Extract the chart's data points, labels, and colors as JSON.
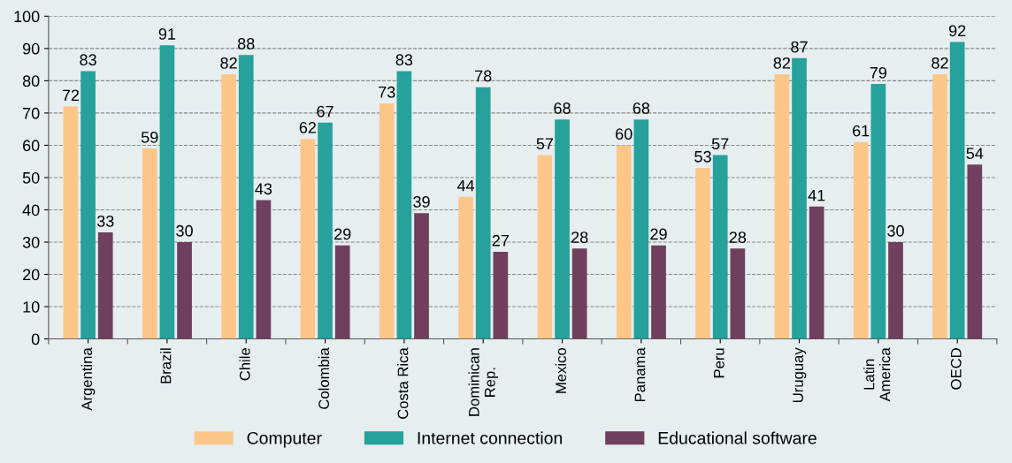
{
  "chart_data": {
    "type": "bar",
    "categories": [
      "Argentina",
      "Brazil",
      "Chile",
      "Colombia",
      "Costa Rica",
      "Dominican\nRep.",
      "Mexico",
      "Panama",
      "Peru",
      "Uruguay",
      "Latin\nAmerica",
      "OECD"
    ],
    "series": [
      {
        "name": "Computer",
        "color": "#fdc689",
        "values": [
          72,
          59,
          82,
          62,
          73,
          44,
          57,
          60,
          53,
          82,
          61,
          82
        ]
      },
      {
        "name": "Internet connection",
        "color": "#26a19b",
        "values": [
          83,
          91,
          88,
          67,
          83,
          78,
          68,
          68,
          57,
          87,
          79,
          92
        ]
      },
      {
        "name": "Educational software",
        "color": "#6f3f5e",
        "values": [
          33,
          30,
          43,
          29,
          39,
          27,
          28,
          29,
          28,
          41,
          30,
          54
        ]
      }
    ],
    "ylim": [
      0,
      100
    ],
    "yticks": [
      0,
      10,
      20,
      30,
      40,
      50,
      60,
      70,
      80,
      90,
      100
    ],
    "grid": "y",
    "legend": "bottom",
    "data_labels": true
  }
}
